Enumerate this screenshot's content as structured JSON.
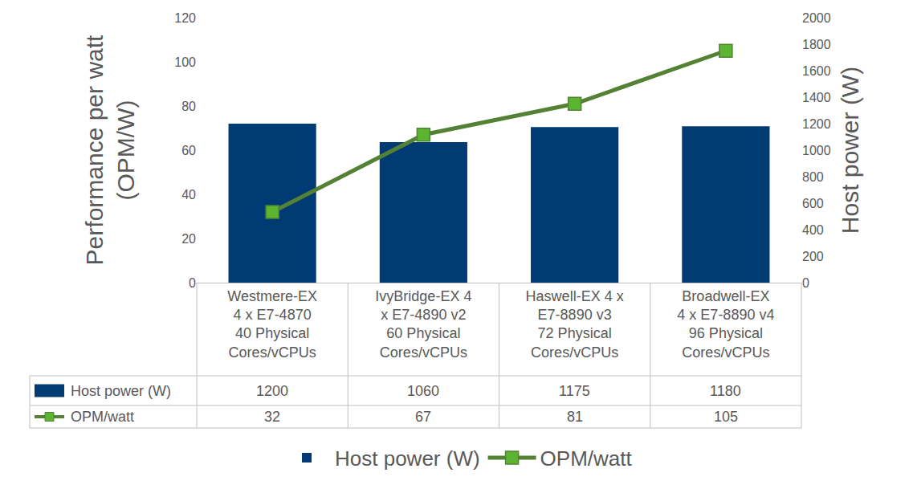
{
  "chart_data": {
    "type": "bar",
    "categories": [
      "Westmere-EX\n4 x E7-4870\n40 Physical\nCores/vCPUs",
      "IvyBridge-EX 4\nx E7-4890 v2\n60 Physical\nCores/vCPUs",
      "Haswell-EX 4 x\nE7-8890 v3\n72 Physical\nCores/vCPUs",
      "Broadwell-EX\n4 x E7-8890 v4\n96 Physical\nCores/vCPUs"
    ],
    "series": [
      {
        "name": "Host power (W)",
        "type": "bar",
        "color": "#013b74",
        "axis": "y2",
        "values": [
          1200,
          1060,
          1175,
          1180
        ]
      },
      {
        "name": "OPM/watt",
        "type": "line",
        "color": "#548235",
        "marker": "square",
        "line_style": "solid",
        "values": [
          32,
          67,
          81,
          105
        ]
      }
    ],
    "y_label": "Performance per watt\n(OPM/W)",
    "y2_label": "Host power (W)",
    "ylim": [
      0,
      120
    ],
    "yticks": [
      0,
      20,
      40,
      60,
      80,
      100,
      120
    ],
    "y2lim": [
      0,
      2000
    ],
    "y2ticks": [
      0,
      200,
      400,
      600,
      800,
      1000,
      1200,
      1400,
      1600,
      1800,
      2000
    ],
    "grid": false,
    "legend": "bottom"
  }
}
